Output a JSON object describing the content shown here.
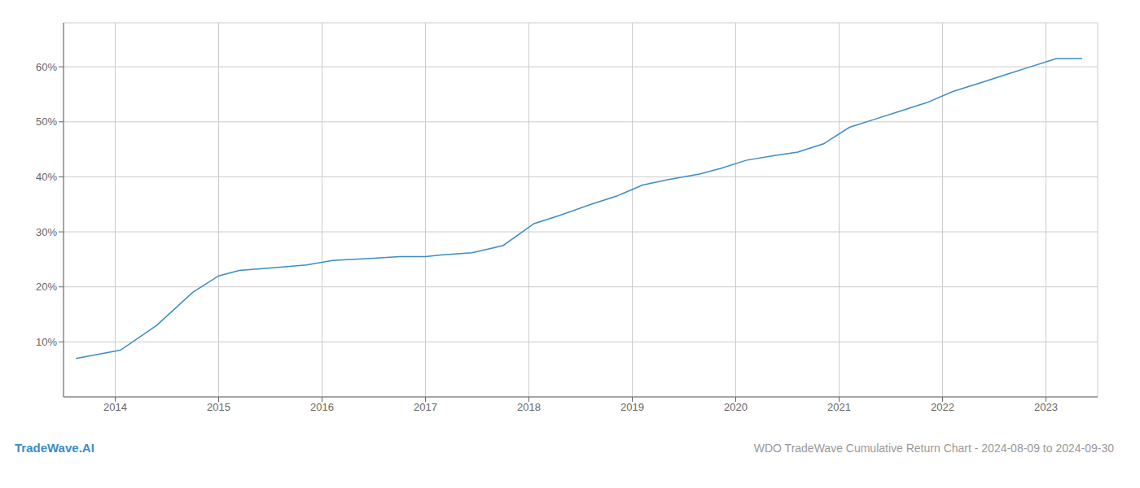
{
  "chart_data": {
    "type": "line",
    "title": "WDO TradeWave Cumulative Return Chart - 2024-08-09 to 2024-09-30",
    "annotations": [
      "TradeWave.AI"
    ],
    "x": [
      2013.62,
      2014.05,
      2014.4,
      2014.75,
      2015.0,
      2015.2,
      2015.55,
      2015.85,
      2016.1,
      2016.5,
      2016.75,
      2017.0,
      2017.15,
      2017.45,
      2017.75,
      2018.05,
      2018.3,
      2018.6,
      2018.85,
      2019.1,
      2019.35,
      2019.65,
      2019.85,
      2020.1,
      2020.35,
      2020.6,
      2020.85,
      2021.1,
      2021.35,
      2021.6,
      2021.85,
      2022.1,
      2022.35,
      2022.6,
      2022.85,
      2023.1,
      2023.35
    ],
    "values": [
      7.0,
      8.5,
      13.0,
      19.0,
      22.0,
      23.0,
      23.5,
      24.0,
      24.8,
      25.2,
      25.5,
      25.5,
      25.8,
      26.2,
      27.5,
      31.5,
      33.0,
      35.0,
      36.5,
      38.5,
      39.5,
      40.5,
      41.5,
      43.0,
      43.8,
      44.5,
      46.0,
      49.0,
      50.5,
      52.0,
      53.5,
      55.5,
      57.0,
      58.5,
      60.0,
      61.5,
      61.5
    ],
    "color": "#3a8dc5",
    "xlim": [
      2013.5,
      2023.5
    ],
    "ylim": [
      0,
      68
    ],
    "xticks": [
      2014,
      2015,
      2016,
      2017,
      2018,
      2019,
      2020,
      2021,
      2022,
      2023
    ],
    "yticks": [
      {
        "value": 10,
        "label": "10%"
      },
      {
        "value": 20,
        "label": "20%"
      },
      {
        "value": 30,
        "label": "30%"
      },
      {
        "value": 40,
        "label": "40%"
      },
      {
        "value": 50,
        "label": "50%"
      },
      {
        "value": 60,
        "label": "60%"
      }
    ],
    "grid": true
  }
}
